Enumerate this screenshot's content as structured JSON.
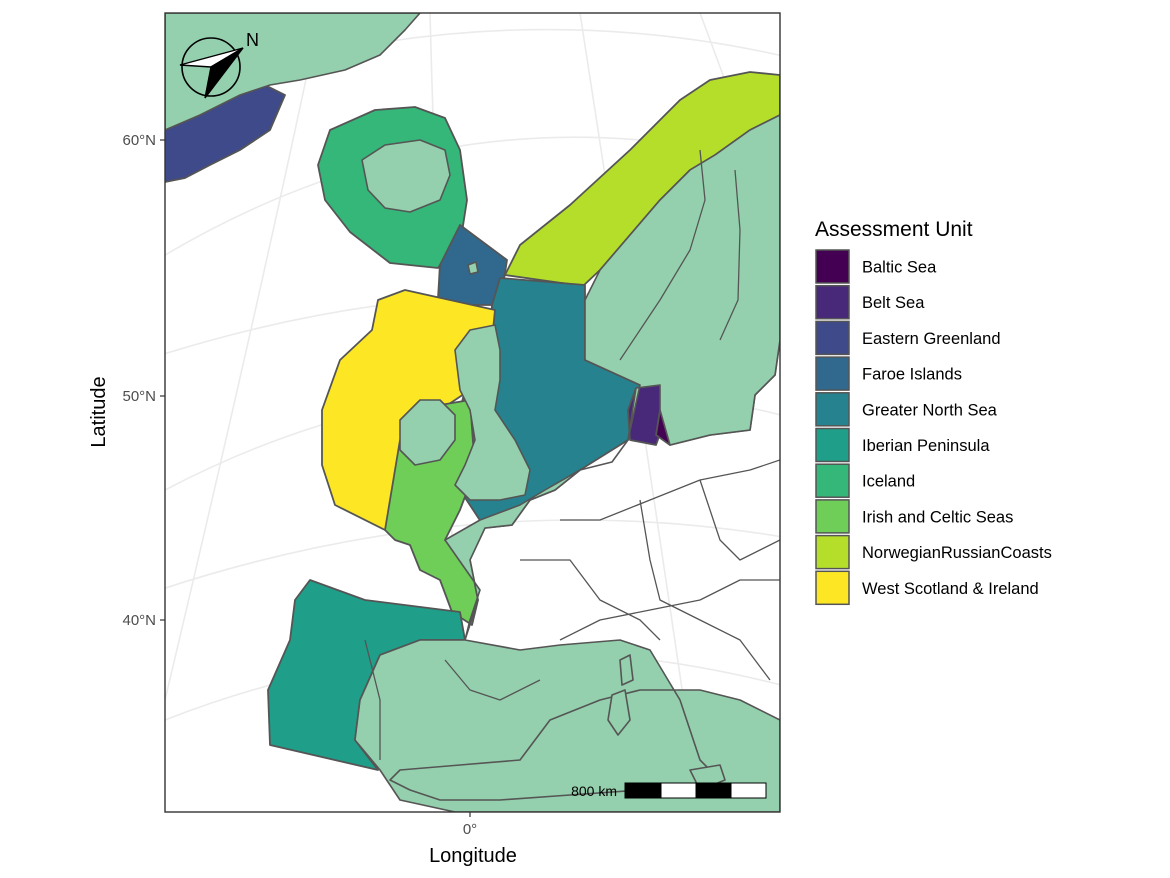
{
  "axes": {
    "x_title": "Longitude",
    "y_title": "Latitude",
    "x_ticks": [
      "0°"
    ],
    "y_ticks": [
      "60°N",
      "50°N",
      "40°N"
    ]
  },
  "legend": {
    "title": "Assessment Unit",
    "position": "right",
    "items": [
      {
        "label": "Baltic Sea",
        "color": "#440154"
      },
      {
        "label": "Belt Sea",
        "color": "#482878"
      },
      {
        "label": "Eastern Greenland",
        "color": "#3e4a89"
      },
      {
        "label": "Faroe Islands",
        "color": "#31688e"
      },
      {
        "label": "Greater North Sea",
        "color": "#26828e"
      },
      {
        "label": "Iberian Peninsula",
        "color": "#1f9e89"
      },
      {
        "label": "Iceland",
        "color": "#35b779"
      },
      {
        "label": "Irish and Celtic Seas",
        "color": "#6ece58"
      },
      {
        "label": "NorwegianRussianCoasts",
        "color": "#b5de2b"
      },
      {
        "label": "West Scotland & Ireland",
        "color": "#fde725"
      }
    ]
  },
  "scale_bar": {
    "label": "800 km"
  },
  "north_arrow": {
    "label": "N"
  },
  "colors": {
    "land": "#94d0ad",
    "sea": "#ffffff",
    "outline": "#555555",
    "graticule": "#ebebeb"
  }
}
